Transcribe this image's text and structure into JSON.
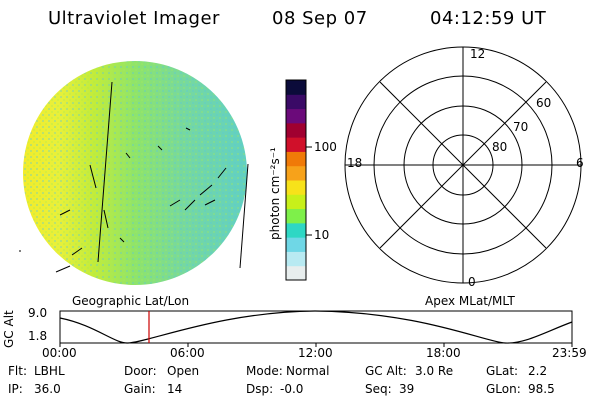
{
  "header": {
    "title": "Ultraviolet Imager",
    "date": "08 Sep 07",
    "time": "04:12:59 UT"
  },
  "colorbar": {
    "unit_label": "photon cm⁻²s⁻¹",
    "ticks": [
      "100",
      "10"
    ],
    "colors": [
      "#0b0b3a",
      "#3a0a66",
      "#6b0a7a",
      "#a00030",
      "#d0102a",
      "#f07a08",
      "#f7a21a",
      "#f7e21a",
      "#c8f01a",
      "#7ef04a",
      "#2ed7c4",
      "#6fd7e6",
      "#b8eaf2",
      "#e8eeee"
    ]
  },
  "polar": {
    "mlt_labels": [
      "12",
      "18",
      "6",
      "0"
    ],
    "lat_labels": [
      "60",
      "70",
      "80"
    ]
  },
  "coords": {
    "left": "Geographic Lat/Lon",
    "right": "Apex MLat/MLT"
  },
  "alt_panel": {
    "axis_label": "GC Alt",
    "y_ticks": [
      "9.0",
      "1.8"
    ],
    "x_ticks": [
      "00:00",
      "06:00",
      "12:00",
      "18:00",
      "23:59"
    ],
    "marker_color": "#cc0000"
  },
  "footer": {
    "row1": [
      {
        "label": "Flt:",
        "value": "LBHL"
      },
      {
        "label": "Door:",
        "value": "Open"
      },
      {
        "label": "Mode:",
        "value": "Normal"
      },
      {
        "label": "GC Alt:",
        "value": "3.0 Re"
      },
      {
        "label": "GLat:",
        "value": "2.2"
      }
    ],
    "row2": [
      {
        "label": "IP:",
        "value": "36.0"
      },
      {
        "label": "Gain:",
        "value": "14"
      },
      {
        "label": "Dsp:",
        "value": "-0.0"
      },
      {
        "label": "Seq:",
        "value": "39"
      },
      {
        "label": "GLon:",
        "value": "98.5"
      }
    ]
  }
}
